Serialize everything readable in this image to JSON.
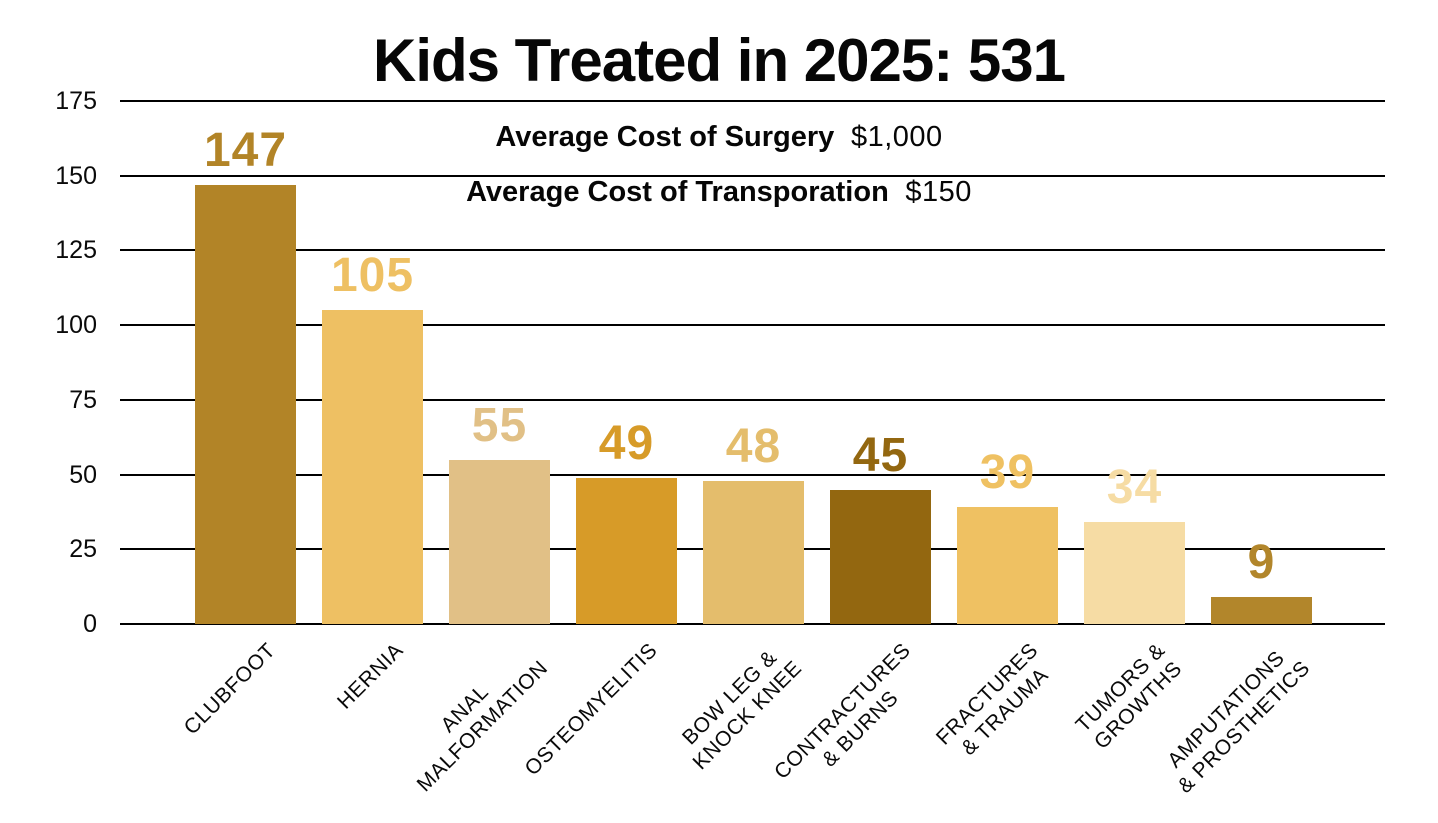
{
  "title": "Kids Treated in 2025: 531",
  "subtitles": [
    {
      "label": "Average Cost of Surgery",
      "value": "$1,000"
    },
    {
      "label": "Average Cost of Transporation",
      "value": "$150"
    }
  ],
  "chart_data": {
    "type": "bar",
    "title": "Kids Treated in 2025: 531",
    "categories": [
      "CLUBFOOT",
      "HERNIA",
      "ANAL MALFORMATION",
      "OSTEOMYELITIS",
      "BOW LEG & KNOCK KNEE",
      "CONTRACTURES & BURNS",
      "FRACTURES & TRAUMA",
      "TUMORS & GROWTHS",
      "AMPUTATIONS & PROSTHETICS"
    ],
    "category_lines": [
      [
        "CLUBFOOT"
      ],
      [
        "HERNIA"
      ],
      [
        "ANAL",
        "MALFORMATION"
      ],
      [
        "OSTEOMYELITIS"
      ],
      [
        "BOW LEG &",
        "KNOCK KNEE"
      ],
      [
        "CONTRACTURES",
        "& BURNS"
      ],
      [
        "FRACTURES",
        "& TRAUMA"
      ],
      [
        "TUMORS &",
        "GROWTHS"
      ],
      [
        "AMPUTATIONS",
        "& PROSTHETICS"
      ]
    ],
    "values": [
      147,
      105,
      55,
      49,
      48,
      45,
      39,
      34,
      9
    ],
    "bar_colors": [
      "#B28427",
      "#EEC063",
      "#E1C086",
      "#D79B28",
      "#E4BD6C",
      "#936710",
      "#EFC162",
      "#F6DCA4",
      "#B2862B"
    ],
    "y_ticks": [
      0,
      25,
      50,
      75,
      100,
      125,
      150,
      175
    ],
    "ylim": [
      0,
      175
    ],
    "grid": true,
    "legend": false,
    "xlabel": "",
    "ylabel": "",
    "text_color": "#060606"
  }
}
